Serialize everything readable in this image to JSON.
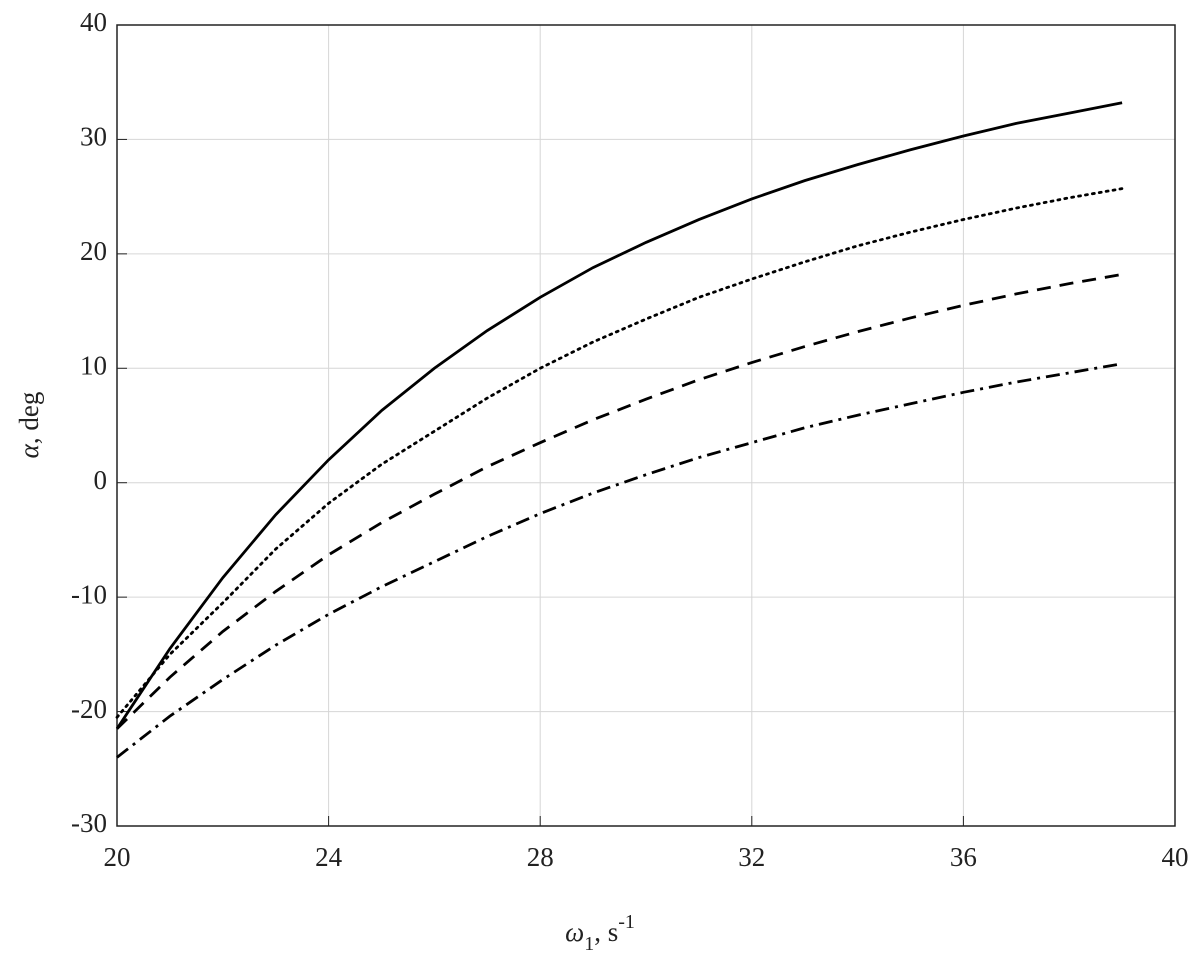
{
  "chart_data": {
    "type": "line",
    "xlabel": [
      "ω",
      "1",
      ", s",
      "-1"
    ],
    "ylabel": [
      "α",
      ", deg"
    ],
    "x": [
      20,
      21,
      22,
      23,
      24,
      25,
      26,
      27,
      28,
      29,
      30,
      31,
      32,
      33,
      34,
      35,
      36,
      37,
      38,
      39
    ],
    "series": [
      {
        "color": "#000000",
        "dash": "solid",
        "values": [
          -21.5,
          -14.5,
          -8.3,
          -2.8,
          2,
          6.3,
          10,
          13.3,
          16.2,
          18.8,
          21,
          23,
          24.8,
          26.4,
          27.8,
          29.1,
          30.3,
          31.4,
          32.3,
          33.2
        ]
      },
      {
        "color": "#000000",
        "dash": "dotted",
        "values": [
          -20.5,
          -15,
          -10.5,
          -5.8,
          -1.8,
          1.6,
          4.5,
          7.4,
          10,
          12.3,
          14.3,
          16.2,
          17.8,
          19.3,
          20.7,
          21.9,
          23,
          24,
          24.9,
          25.7
        ]
      },
      {
        "color": "#000000",
        "dash": "dashed",
        "values": [
          -21.5,
          -17,
          -13,
          -9.5,
          -6.3,
          -3.5,
          -1,
          1.4,
          3.5,
          5.5,
          7.3,
          9,
          10.5,
          11.9,
          13.2,
          14.4,
          15.5,
          16.5,
          17.4,
          18.2
        ]
      },
      {
        "color": "#000000",
        "dash": "dashdot",
        "values": [
          -24,
          -20.4,
          -17.2,
          -14.2,
          -11.5,
          -9.1,
          -6.9,
          -4.7,
          -2.7,
          -0.9,
          0.7,
          2.2,
          3.5,
          4.8,
          5.9,
          6.9,
          7.9,
          8.8,
          9.6,
          10.4
        ]
      }
    ],
    "xlim": [
      20,
      40
    ],
    "xticks": [
      20,
      24,
      28,
      32,
      36,
      40
    ],
    "ylim": [
      -30,
      40
    ],
    "yticks": [
      -30,
      -20,
      -10,
      0,
      10,
      20,
      30,
      40
    ],
    "grid": true
  }
}
